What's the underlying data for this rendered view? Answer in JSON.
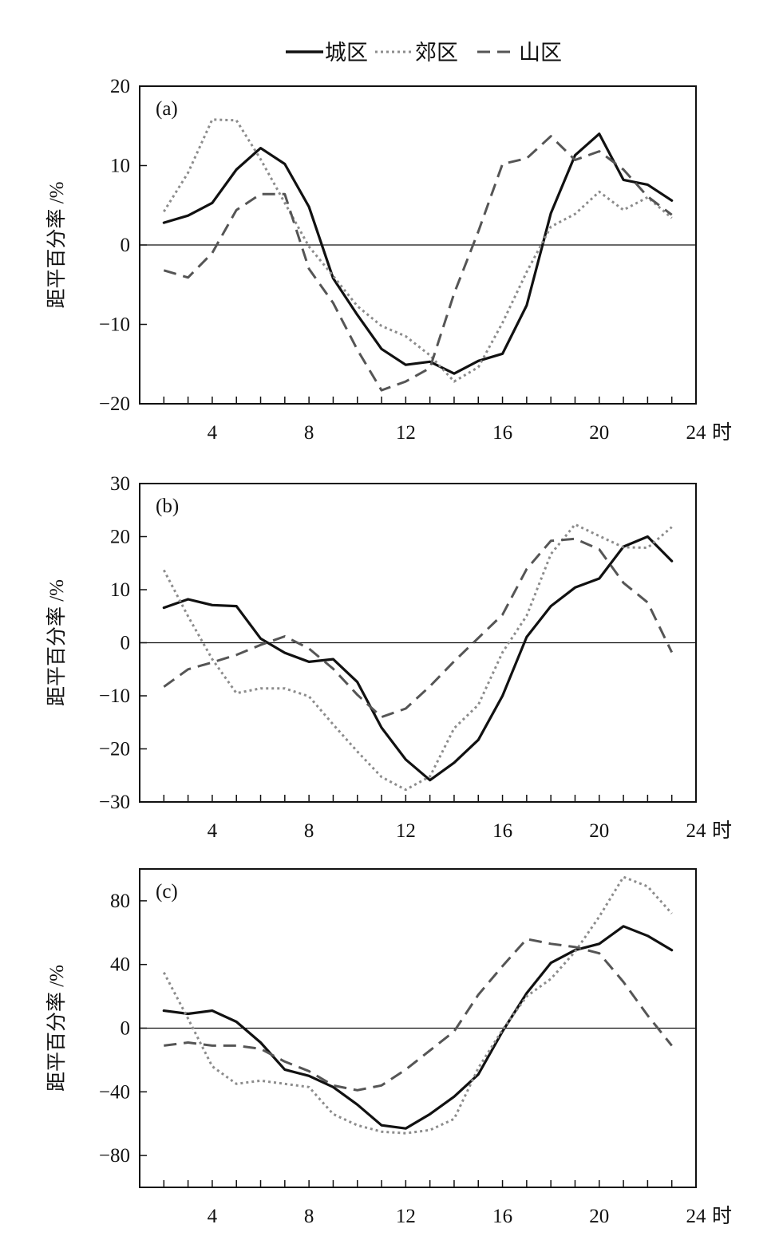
{
  "chart_data": [
    {
      "type": "line",
      "panel_label": "(a)",
      "ylabel": "距平百分率 /%",
      "xlabel": "",
      "x_unit": "时",
      "ylim": [
        -20,
        20
      ],
      "y_ticks": [
        -20,
        -10,
        0,
        10,
        20
      ],
      "y_tick_labels": [
        "−20",
        "−10",
        "0",
        "10",
        "20"
      ],
      "xlim": [
        1,
        24
      ],
      "x_ticks": [
        4,
        8,
        12,
        16,
        20,
        24
      ],
      "x_tick_labels": [
        "4",
        "8",
        "12",
        "16",
        "20",
        "24"
      ],
      "x": [
        2,
        3,
        4,
        5,
        6,
        7,
        8,
        9,
        10,
        11,
        12,
        13,
        14,
        15,
        16,
        17,
        18,
        19,
        20,
        21,
        22,
        23
      ],
      "series": [
        {
          "name": "城区",
          "values": [
            2.8,
            3.7,
            5.3,
            9.5,
            12.2,
            10.2,
            4.8,
            -4.2,
            -8.8,
            -13.1,
            -15.1,
            -14.7,
            -16.2,
            -14.6,
            -13.7,
            -7.6,
            4.0,
            11.3,
            14.0,
            8.2,
            7.6,
            5.6
          ]
        },
        {
          "name": "郊区",
          "values": [
            4.2,
            9.1,
            15.8,
            15.7,
            10.8,
            5.3,
            -0.2,
            -3.9,
            -7.7,
            -10.2,
            -11.5,
            -13.9,
            -17.2,
            -15.4,
            -9.8,
            -3.4,
            2.3,
            3.9,
            6.7,
            4.4,
            6.0,
            3.4
          ]
        },
        {
          "name": "山区",
          "values": [
            -3.2,
            -4.1,
            -1.0,
            4.4,
            6.4,
            6.4,
            -3.0,
            -7.3,
            -13.2,
            -18.3,
            -17.2,
            -15.5,
            -6.1,
            1.7,
            10.2,
            10.9,
            13.7,
            10.7,
            11.8,
            9.5,
            6.1,
            3.8
          ]
        }
      ]
    },
    {
      "type": "line",
      "panel_label": "(b)",
      "ylabel": "距平百分率 /%",
      "xlabel": "",
      "x_unit": "时",
      "ylim": [
        -30,
        30
      ],
      "y_ticks": [
        -30,
        -20,
        -10,
        0,
        10,
        20,
        30
      ],
      "y_tick_labels": [
        "−30",
        "−20",
        "−10",
        "0",
        "10",
        "20",
        "30"
      ],
      "xlim": [
        1,
        24
      ],
      "x_ticks": [
        4,
        8,
        12,
        16,
        20,
        24
      ],
      "x_tick_labels": [
        "4",
        "8",
        "12",
        "16",
        "20",
        "24"
      ],
      "x": [
        2,
        3,
        4,
        5,
        6,
        7,
        8,
        9,
        10,
        11,
        12,
        13,
        14,
        15,
        16,
        17,
        18,
        19,
        20,
        21,
        22,
        23
      ],
      "series": [
        {
          "name": "城区",
          "values": [
            6.6,
            8.2,
            7.1,
            6.9,
            0.8,
            -1.9,
            -3.6,
            -3.1,
            -7.4,
            -16.0,
            -22.0,
            -25.9,
            -22.6,
            -18.3,
            -10.0,
            1.1,
            6.9,
            10.4,
            12.1,
            18.1,
            20.0,
            15.4
          ]
        },
        {
          "name": "郊区",
          "values": [
            13.7,
            5.0,
            -3.1,
            -9.5,
            -8.6,
            -8.6,
            -10.1,
            -15.4,
            -20.5,
            -25.3,
            -27.7,
            -25.2,
            -16.1,
            -11.7,
            -1.8,
            5.1,
            16.7,
            22.3,
            20.1,
            18.0,
            17.9,
            21.8
          ]
        },
        {
          "name": "山区",
          "values": [
            -8.3,
            -5.0,
            -3.7,
            -2.3,
            -0.4,
            1.2,
            -1.1,
            -4.9,
            -9.8,
            -14.0,
            -12.4,
            -8.2,
            -3.5,
            0.9,
            5.3,
            13.9,
            19.2,
            19.6,
            17.6,
            11.3,
            7.6,
            -1.8
          ]
        }
      ]
    },
    {
      "type": "line",
      "panel_label": "(c)",
      "ylabel": "距平百分率 /%",
      "xlabel": "",
      "x_unit": "时",
      "ylim": [
        -100,
        100
      ],
      "y_ticks": [
        -80,
        -40,
        0,
        40,
        80
      ],
      "y_tick_labels": [
        "−80",
        "−40",
        "0",
        "40",
        "80"
      ],
      "xlim": [
        1,
        24
      ],
      "x_ticks": [
        4,
        8,
        12,
        16,
        20,
        24
      ],
      "x_tick_labels": [
        "4",
        "8",
        "12",
        "16",
        "20",
        "24"
      ],
      "x": [
        2,
        3,
        4,
        5,
        6,
        7,
        8,
        9,
        10,
        11,
        12,
        13,
        14,
        15,
        16,
        17,
        18,
        19,
        20,
        21,
        22,
        23
      ],
      "series": [
        {
          "name": "城区",
          "values": [
            11,
            9,
            11,
            4,
            -9,
            -26,
            -30,
            -37,
            -48,
            -61,
            -63,
            -54,
            -43,
            -29,
            -2,
            22,
            41,
            49,
            53,
            64,
            58,
            49
          ]
        },
        {
          "name": "郊区",
          "values": [
            35,
            6,
            -24,
            -35,
            -33,
            -35,
            -37,
            -54,
            -61,
            -65,
            -66,
            -64,
            -57,
            -25,
            -1,
            20,
            31,
            48,
            70,
            95,
            89,
            72
          ]
        },
        {
          "name": "山区",
          "values": [
            -11,
            -9,
            -11,
            -11,
            -13,
            -21,
            -27,
            -36,
            -39,
            -36,
            -26,
            -14,
            -2,
            21,
            39,
            56,
            53,
            51,
            47,
            29,
            8,
            -11
          ]
        }
      ]
    }
  ],
  "legend": {
    "placement": "top-center",
    "items": [
      {
        "label": "城区",
        "color": "#111111",
        "dash": "solid"
      },
      {
        "label": "郊区",
        "color": "#8c8c8c",
        "dash": "dotted"
      },
      {
        "label": "山区",
        "color": "#555555",
        "dash": "dashed"
      }
    ]
  },
  "styles": {
    "city_color": "#111111",
    "suburb_color": "#8c8c8c",
    "mountain_color": "#555555",
    "zero_line": true,
    "grid": false
  }
}
